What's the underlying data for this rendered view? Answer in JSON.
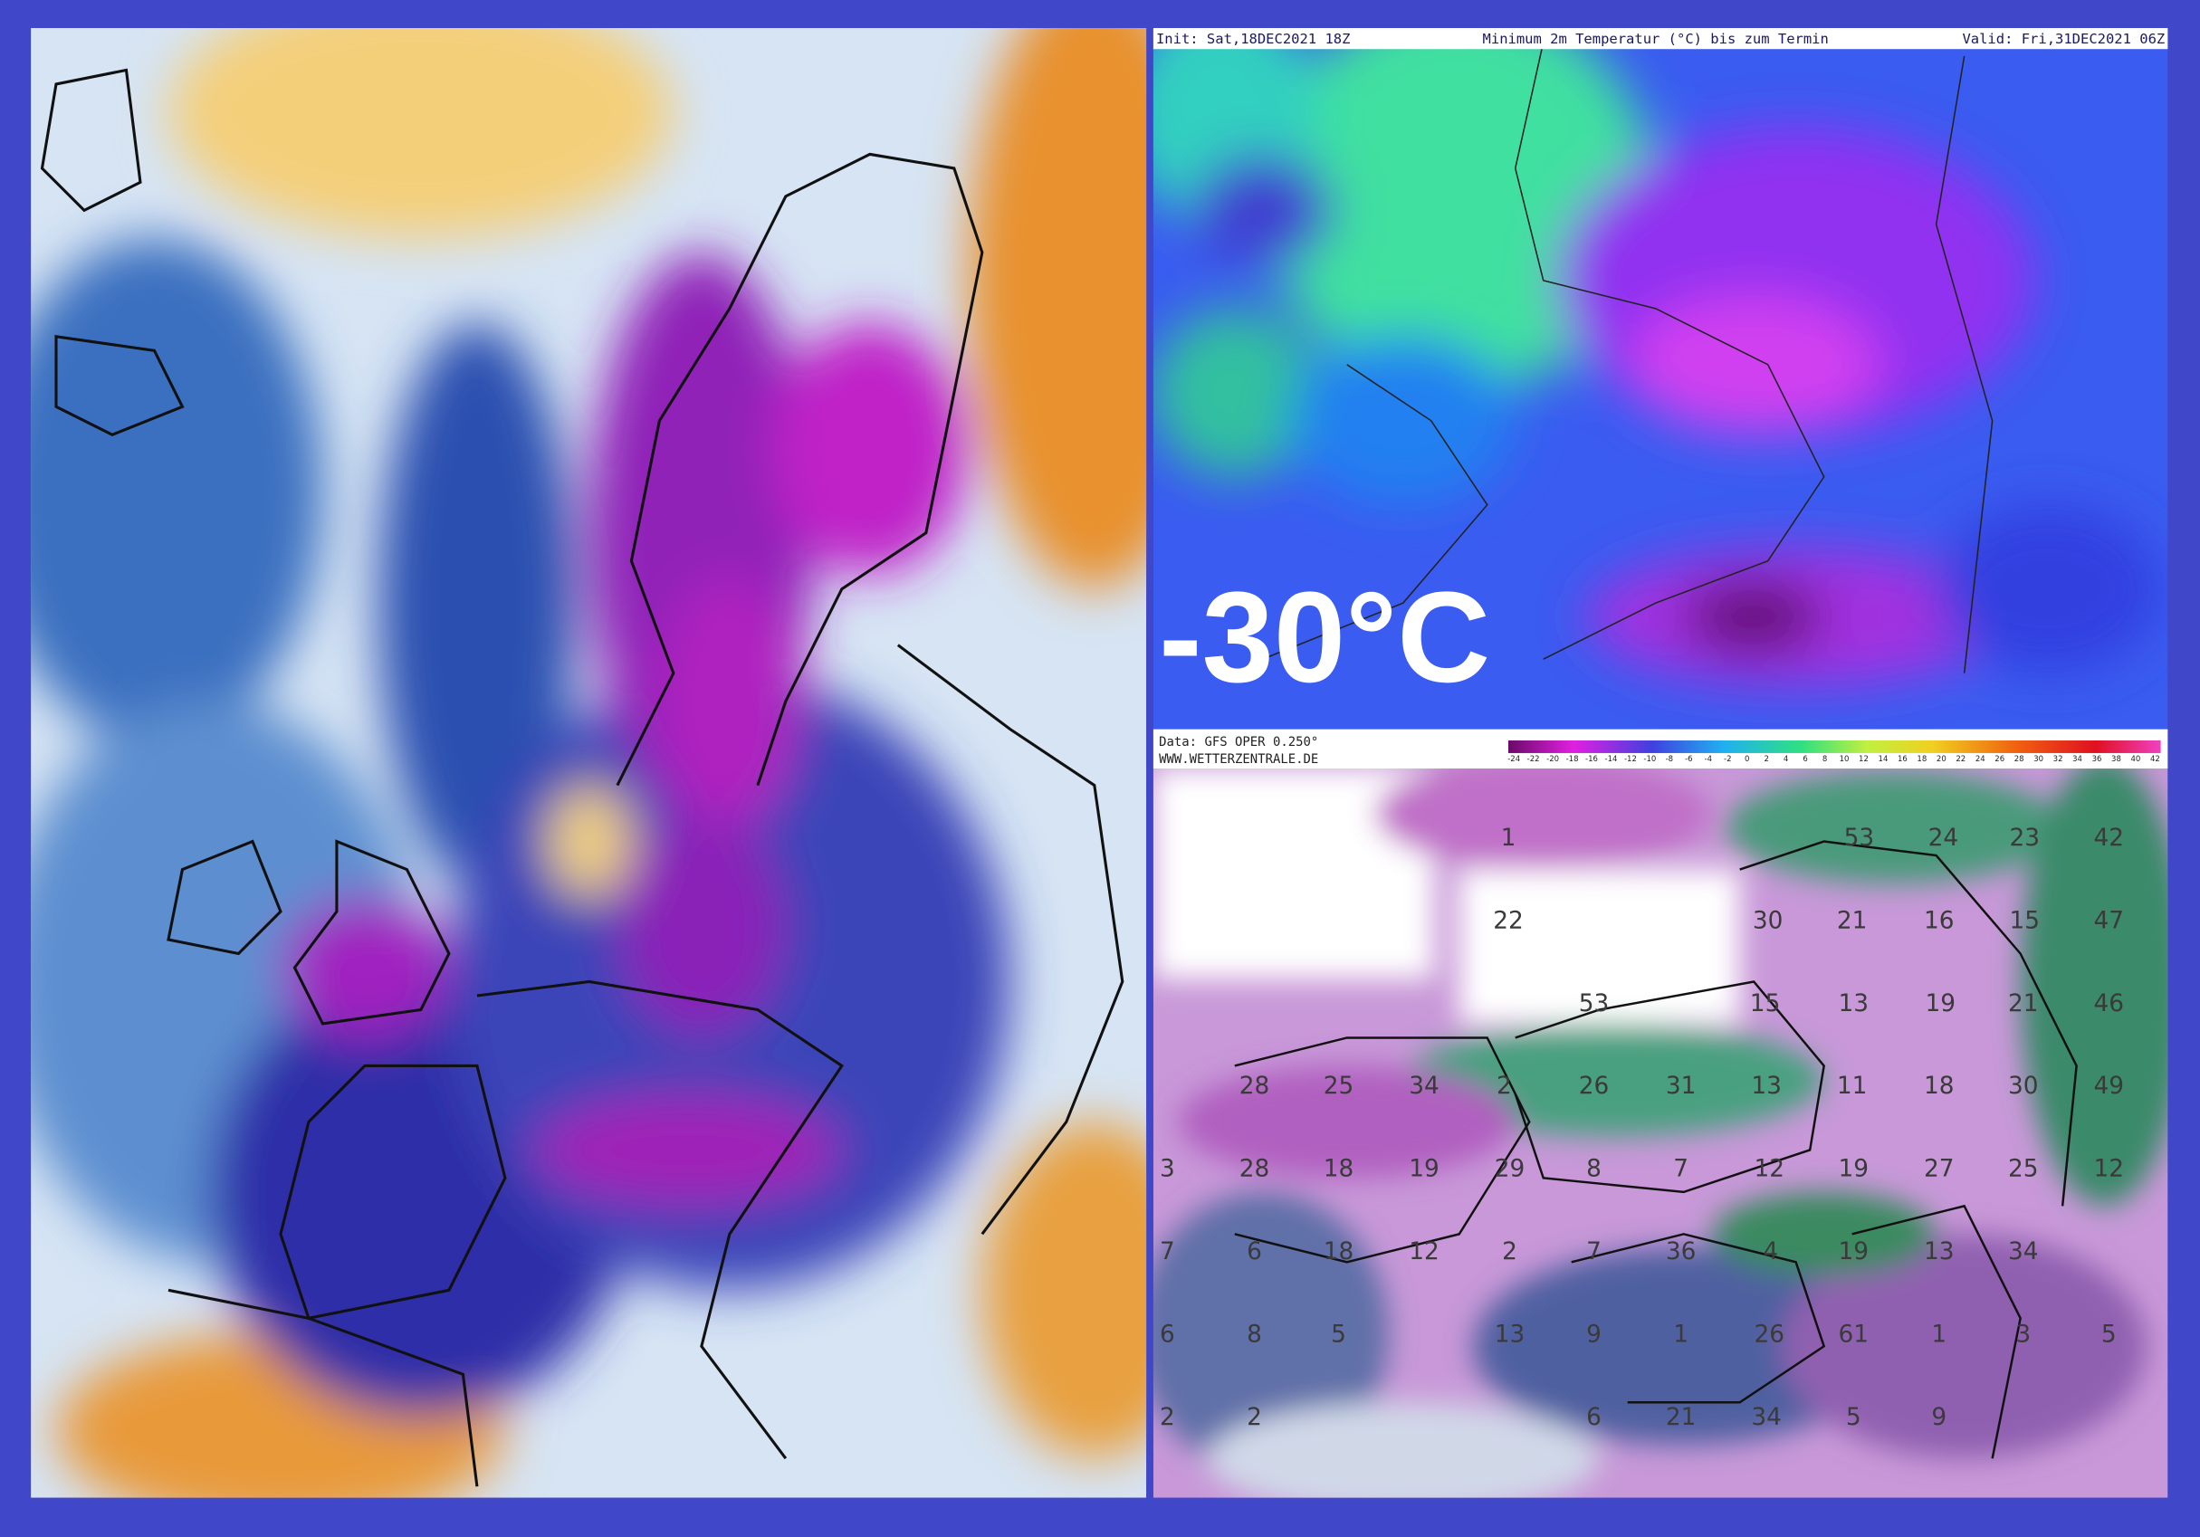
{
  "header": {
    "init": "Init: Sat,18DEC2021 18Z",
    "title": "Minimum 2m Temperatur (°C) bis zum Termin",
    "valid": "Valid: Fri,31DEC2021 06Z"
  },
  "overlay_text": "-30°C",
  "footer": {
    "data": "Data: GFS OPER 0.250°",
    "site": "WWW.WETTERZENTRALE.DE"
  },
  "colorbar": {
    "labels": [
      -24,
      -22,
      -20,
      -18,
      -16,
      -14,
      -12,
      -10,
      -8,
      -6,
      -4,
      -2,
      0,
      2,
      4,
      6,
      8,
      10,
      12,
      14,
      16,
      18,
      20,
      22,
      24,
      26,
      28,
      30,
      32,
      34,
      36,
      38,
      40,
      42
    ]
  },
  "snow_map": {
    "labels": [
      1,
      53,
      24,
      23,
      42,
      22,
      30,
      21,
      16,
      15,
      47,
      53,
      15,
      13,
      19,
      21,
      46,
      28,
      25,
      34,
      2,
      26,
      31,
      13,
      11,
      18,
      30,
      49,
      3,
      28,
      18,
      19,
      29,
      8,
      7,
      12,
      19,
      27,
      25,
      12,
      7,
      6,
      18,
      12,
      2,
      7,
      36,
      4,
      19,
      13,
      34,
      6,
      8,
      5,
      13,
      9,
      1,
      26,
      61,
      1,
      3,
      5,
      2,
      2,
      6,
      21,
      34,
      5,
      9
    ]
  }
}
